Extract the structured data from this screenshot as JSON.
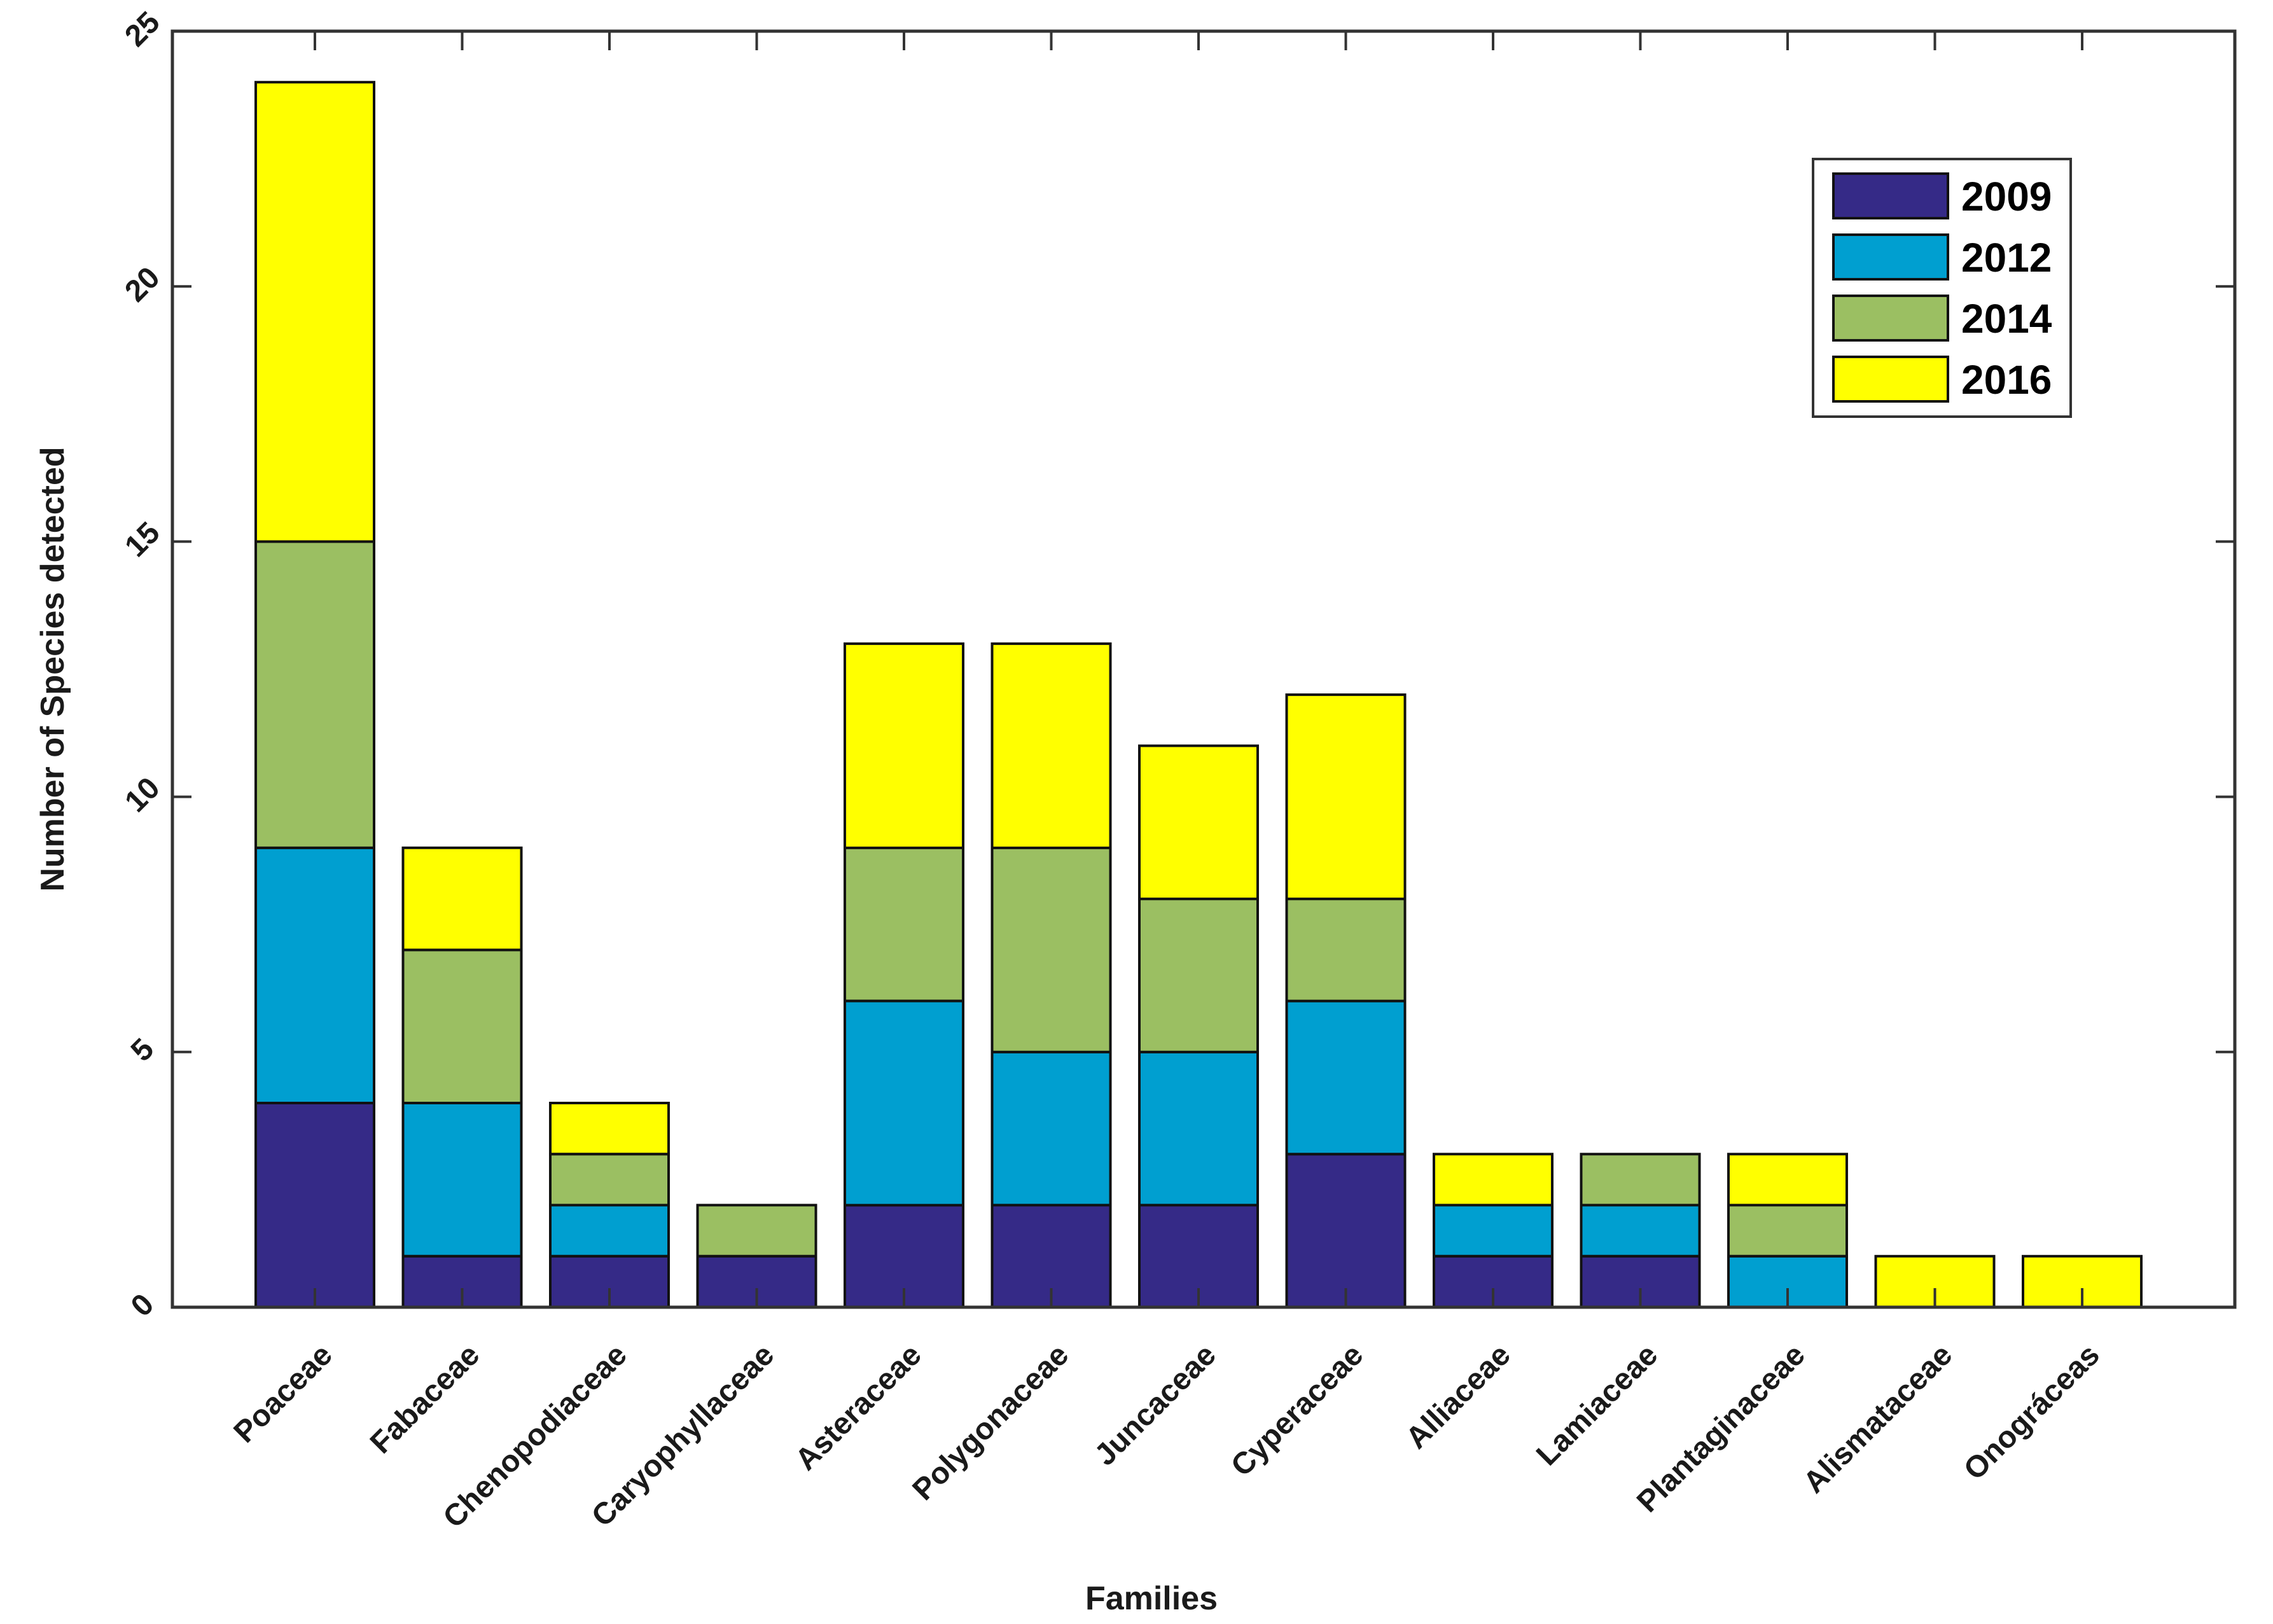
{
  "chart_data": {
    "type": "bar",
    "stacked": true,
    "title": "",
    "xlabel": "Families",
    "ylabel": "Number of Species detected",
    "ylim": [
      0,
      25
    ],
    "yticks": [
      0,
      5,
      10,
      15,
      20,
      25
    ],
    "grid": false,
    "legend_position": "top-right",
    "categories": [
      "Poaceae",
      "Fabaceae",
      "Chenopodiaceae",
      "Caryophyllaceae",
      "Asteraceae",
      "Polygonaceae",
      "Juncaceae",
      "Cyperaceae",
      "Alliaceae",
      "Lamiaceae",
      "Plantaginaceae",
      "Alismataceae",
      "Onográceas"
    ],
    "series": [
      {
        "name": "2009",
        "color": "#352a87",
        "values": [
          4,
          1,
          1,
          1,
          2,
          2,
          2,
          3,
          1,
          1,
          0,
          0,
          0
        ]
      },
      {
        "name": "2012",
        "color": "#009fd0",
        "values": [
          5,
          3,
          1,
          0,
          4,
          3,
          3,
          3,
          1,
          1,
          1,
          0,
          0
        ]
      },
      {
        "name": "2014",
        "color": "#9bbf62",
        "values": [
          6,
          3,
          1,
          1,
          3,
          4,
          3,
          2,
          0,
          1,
          1,
          0,
          0
        ]
      },
      {
        "name": "2016",
        "color": "#ffff00",
        "values": [
          9,
          2,
          1,
          0,
          4,
          4,
          3,
          4,
          1,
          0,
          1,
          1,
          1
        ]
      }
    ]
  }
}
